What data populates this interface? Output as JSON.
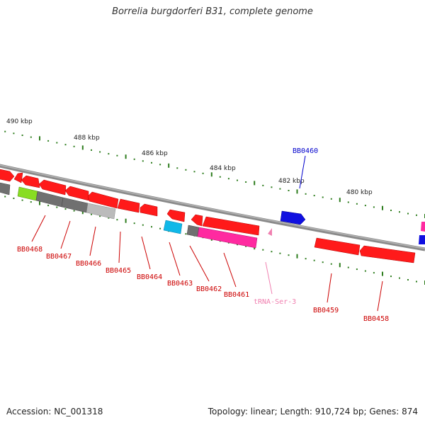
{
  "title": "Borrelia burgdorferi B31, complete genome",
  "footer": {
    "accession": "Accession: NC_001318",
    "summary": "Topology: linear; Length: 910,724 bp; Genes: 874"
  },
  "scale_labels": [
    "490 kbp",
    "488 kbp",
    "486 kbp",
    "484 kbp",
    "482 kbp",
    "480 kbp"
  ],
  "gene_labels": [
    {
      "name": "BB0468",
      "color": "#cc0000"
    },
    {
      "name": "BB0467",
      "color": "#cc0000"
    },
    {
      "name": "BB0466",
      "color": "#cc0000"
    },
    {
      "name": "BB0465",
      "color": "#cc0000"
    },
    {
      "name": "BB0464",
      "color": "#cc0000"
    },
    {
      "name": "BB0463",
      "color": "#cc0000"
    },
    {
      "name": "BB0462",
      "color": "#cc0000"
    },
    {
      "name": "BB0461",
      "color": "#cc0000"
    },
    {
      "name": "tRNA-Ser-3",
      "color": "#f080b0"
    },
    {
      "name": "BB0459",
      "color": "#cc0000"
    },
    {
      "name": "BB0458",
      "color": "#cc0000"
    },
    {
      "name": "BB0460",
      "color": "#0000cc"
    }
  ],
  "colors": {
    "backbone": "#8a8a8a",
    "scale_tick": "#2e7d1e",
    "gene_red": "#ff1a1a",
    "gene_blue": "#1010e0",
    "gene_pink": "#ff2aa0",
    "gene_cyan": "#10b8e8",
    "gene_gray": "#707070",
    "gene_lightgray": "#bbbbbb",
    "gene_green": "#88dd22"
  }
}
